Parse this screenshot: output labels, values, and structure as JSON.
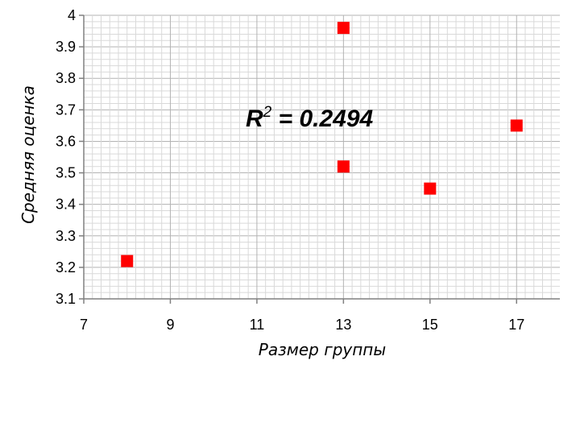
{
  "chart_data": {
    "type": "scatter",
    "xlabel": "Размер группы",
    "ylabel": "Средняя оценка",
    "xlim": [
      7,
      18
    ],
    "ylim": [
      3.1,
      4
    ],
    "x_ticks": [
      "7",
      "9",
      "11",
      "13",
      "15",
      "17"
    ],
    "y_ticks": [
      "3.1",
      "3.2",
      "3.3",
      "3.4",
      "3.5",
      "3.6",
      "3.7",
      "3.8",
      "3.9",
      "4"
    ],
    "grid": true,
    "points": [
      {
        "x": 8,
        "y": 3.22
      },
      {
        "x": 13,
        "y": 3.96
      },
      {
        "x": 13,
        "y": 3.52
      },
      {
        "x": 15,
        "y": 3.45
      },
      {
        "x": 17,
        "y": 3.65
      }
    ],
    "annotation": {
      "base": "R",
      "sup": "2",
      "value": " = 0.2494"
    },
    "colors": {
      "marker": "#ff0000",
      "grid": "#c0c0c0",
      "axis": "#7f7f7f"
    }
  }
}
